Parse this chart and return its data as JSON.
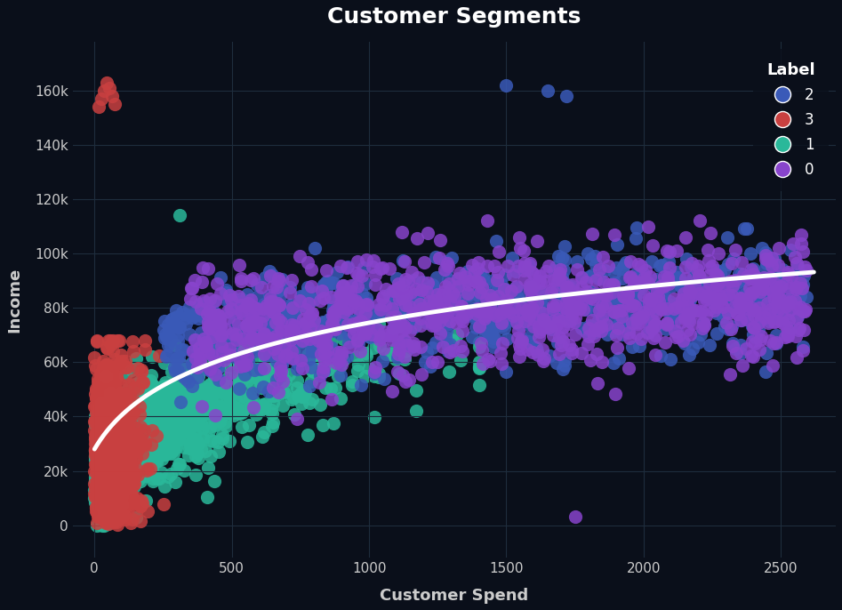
{
  "title": "Customer Segments",
  "xlabel": "Customer Spend",
  "ylabel": "Income",
  "background_color": "#0a0f1a",
  "grid_color": "#1e2d3d",
  "title_color": "#ffffff",
  "label_color": "#cccccc",
  "tick_color": "#cccccc",
  "legend_title": "Label",
  "colors": {
    "2": "#3a5ab8",
    "3": "#c94040",
    "1": "#2ab89a",
    "0": "#8844cc"
  },
  "xlim": [
    -80,
    2700
  ],
  "ylim": [
    -12000,
    178000
  ],
  "xticks": [
    0,
    500,
    1000,
    1500,
    2000,
    2500
  ],
  "yticks": [
    0,
    20000,
    40000,
    60000,
    80000,
    100000,
    120000,
    140000,
    160000
  ],
  "ytick_labels": [
    "0",
    "20k",
    "40k",
    "60k",
    "80k",
    "100k",
    "120k",
    "140k",
    "160k"
  ],
  "curve_color": "#ffffff",
  "curve_lw": 3.5,
  "marker_size": 120,
  "alpha": 0.85,
  "seed": 7
}
